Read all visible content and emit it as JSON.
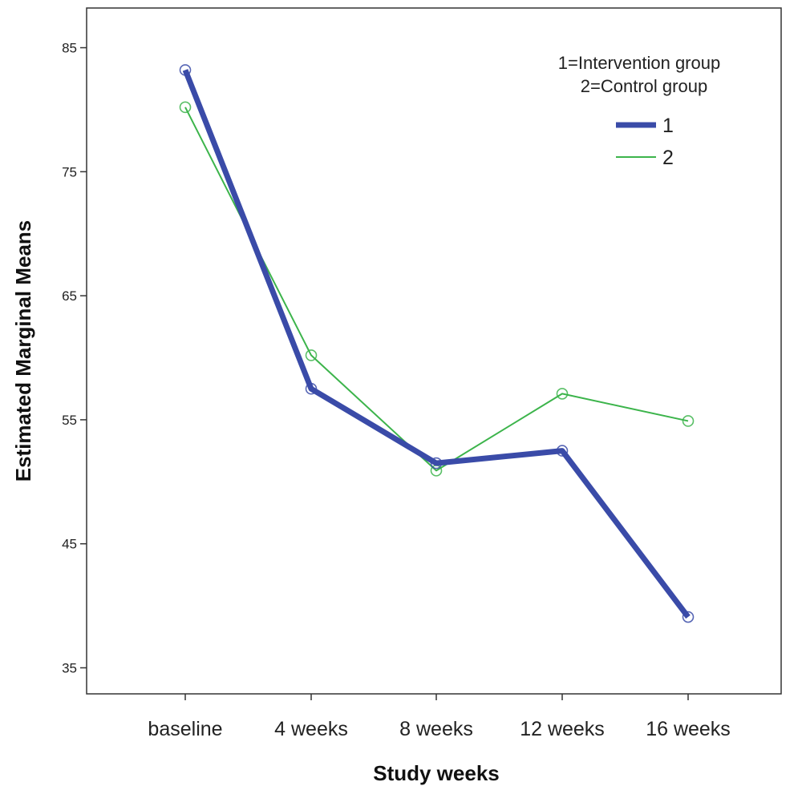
{
  "chart_data": {
    "type": "line",
    "xlabel": "Study weeks",
    "ylabel": "Estimated Marginal Means",
    "categories": [
      "baseline",
      "4 weeks",
      "8 weeks",
      "12 weeks",
      "16 weeks"
    ],
    "yticks": [
      35,
      45,
      55,
      65,
      75,
      85
    ],
    "ylim": [
      32.9,
      88.2
    ],
    "grid": false,
    "legend": {
      "placement": "top-right",
      "title_lines": [
        "1=Intervention group",
        "2=Control group"
      ]
    },
    "series": [
      {
        "name": "1",
        "values": [
          83.2,
          57.5,
          51.5,
          52.5,
          39.1
        ],
        "color": "#3a4ba8",
        "line_width": "thick"
      },
      {
        "name": "2",
        "values": [
          80.2,
          60.2,
          50.9,
          57.1,
          54.9
        ],
        "color": "#3cb44b",
        "line_width": "thin"
      }
    ]
  }
}
